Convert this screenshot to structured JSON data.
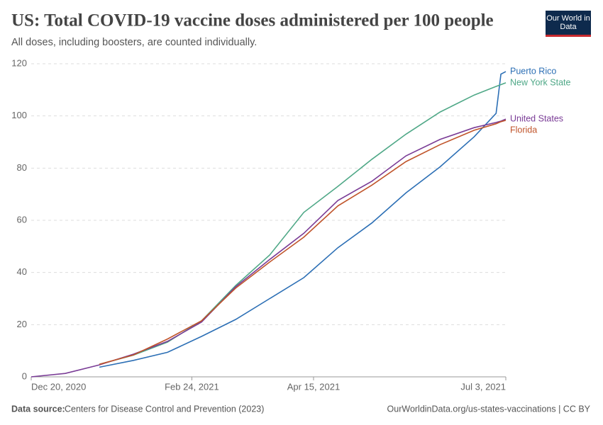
{
  "chart_data": {
    "type": "line",
    "title": "US: Total COVID-19 vaccine doses administered per 100 people",
    "subtitle": "All doses, including boosters, are counted individually.",
    "logo": "Our World in Data",
    "source_label": "Data source:",
    "source": "Centers for Disease Control and Prevention (2023)",
    "url": "OurWorldinData.org/us-states-vaccinations | CC BY",
    "x": [
      "2020-12-20",
      "2021-01-03",
      "2021-01-17",
      "2021-01-31",
      "2021-02-14",
      "2021-02-28",
      "2021-03-14",
      "2021-03-28",
      "2021-04-11",
      "2021-04-25",
      "2021-05-09",
      "2021-05-23",
      "2021-06-06",
      "2021-06-20",
      "2021-06-29",
      "2021-07-01",
      "2021-07-03"
    ],
    "series": [
      {
        "name": "Puerto Rico",
        "color": "#2c6fb5",
        "values": [
          null,
          null,
          3.7,
          6.3,
          9.4,
          15.5,
          22,
          30,
          38,
          49.5,
          59,
          70.5,
          80.5,
          92,
          101,
          116,
          117
        ]
      },
      {
        "name": "New York State",
        "color": "#4fa887",
        "values": [
          null,
          null,
          4.8,
          8.3,
          13.3,
          21.5,
          35,
          46.7,
          63,
          73,
          83.4,
          93,
          101.5,
          108,
          111.3,
          112,
          112.7
        ]
      },
      {
        "name": "United States",
        "color": "#7a3c96",
        "values": [
          0,
          1.3,
          4.6,
          8.7,
          13.6,
          21,
          34.5,
          45,
          55,
          67.6,
          75,
          84.7,
          91,
          95.5,
          97.5,
          98,
          98.8
        ]
      },
      {
        "name": "Florida",
        "color": "#c0542a",
        "values": [
          null,
          null,
          4.8,
          8.4,
          14.5,
          21.5,
          34,
          44,
          53.5,
          65.5,
          73.5,
          82.5,
          89,
          94.5,
          97,
          97.8,
          98.3
        ]
      }
    ],
    "xlim": [
      "2020-12-20",
      "2021-07-03"
    ],
    "xticks": [
      {
        "value": "2020-12-20",
        "label": "Dec 20, 2020"
      },
      {
        "value": "2021-02-24",
        "label": "Feb 24, 2021"
      },
      {
        "value": "2021-04-15",
        "label": "Apr 15, 2021"
      },
      {
        "value": "2021-07-03",
        "label": "Jul 3, 2021"
      }
    ],
    "ylim": [
      0,
      120
    ],
    "yticks": [
      0,
      20,
      40,
      60,
      80,
      100,
      120
    ],
    "grid": true
  }
}
